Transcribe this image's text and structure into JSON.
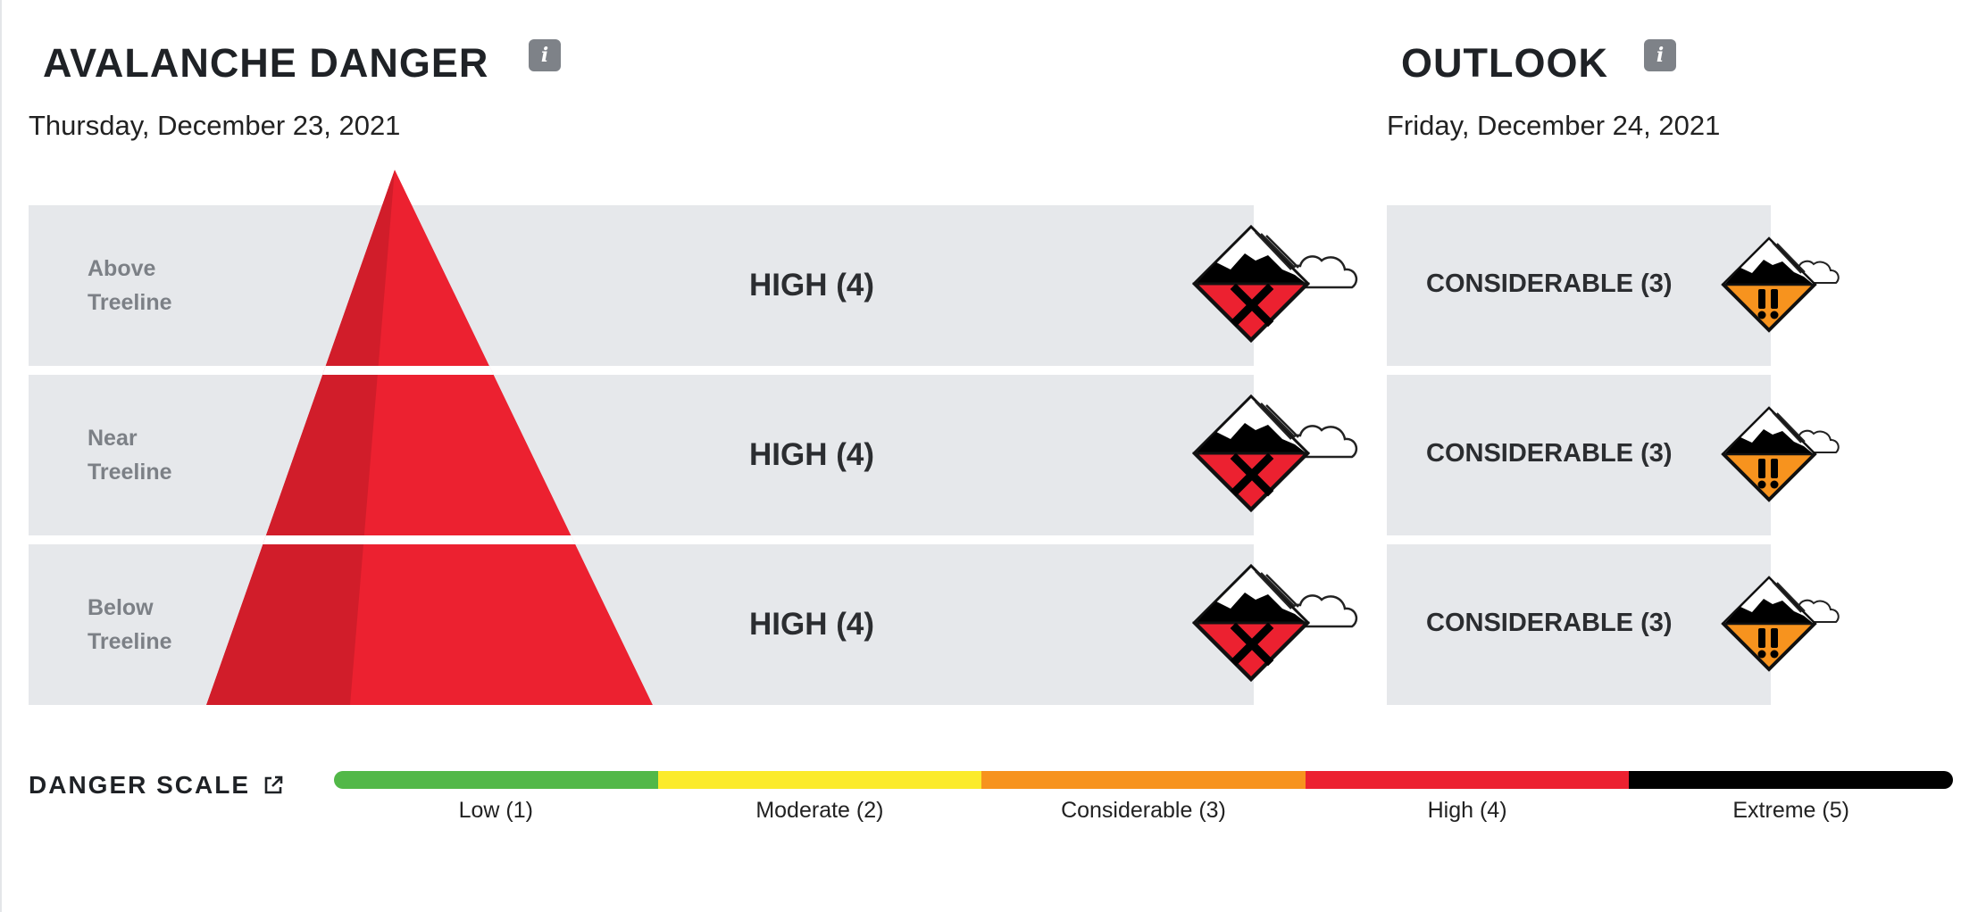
{
  "danger": {
    "title": "AVALANCHE DANGER",
    "info": "i",
    "date": "Thursday, December 23, 2021",
    "rows": [
      {
        "label_line1": "Above",
        "label_line2": "Treeline",
        "rating": "HIGH (4)"
      },
      {
        "label_line1": "Near",
        "label_line2": "Treeline",
        "rating": "HIGH (4)"
      },
      {
        "label_line1": "Below",
        "label_line2": "Treeline",
        "rating": "HIGH (4)"
      }
    ],
    "icon": "high-danger-icon",
    "color": "#ec2130"
  },
  "outlook": {
    "title": "OUTLOOK",
    "info": "i",
    "date": "Friday, December 24, 2021",
    "rows": [
      {
        "rating": "CONSIDERABLE (3)"
      },
      {
        "rating": "CONSIDERABLE (3)"
      },
      {
        "rating": "CONSIDERABLE (3)"
      }
    ],
    "icon": "considerable-danger-icon",
    "color": "#f7931e"
  },
  "scale": {
    "title": "DANGER SCALE",
    "link_icon": "external-link-icon",
    "levels": [
      {
        "label": "Low (1)",
        "color": "#52b848"
      },
      {
        "label": "Moderate (2)",
        "color": "#fbeb2b"
      },
      {
        "label": "Considerable (3)",
        "color": "#f7931e"
      },
      {
        "label": "High (4)",
        "color": "#ec2130"
      },
      {
        "label": "Extreme (5)",
        "color": "#000000"
      }
    ]
  }
}
